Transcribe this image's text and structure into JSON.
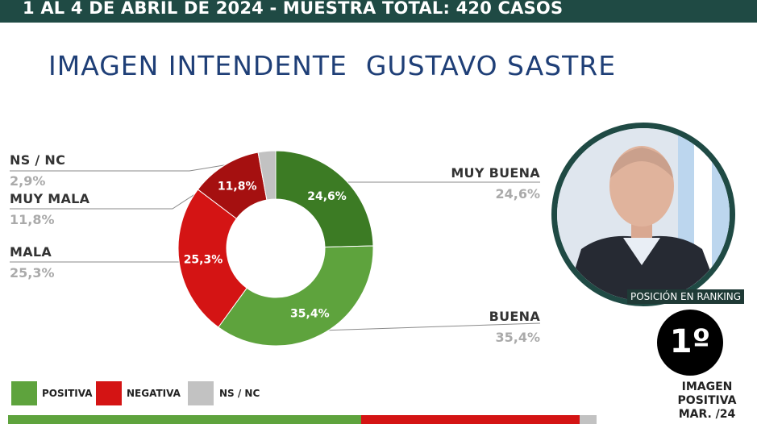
{
  "header": {
    "text": "1 AL 4 DE ABRIL DE 2024 - MUESTRA TOTAL: 420 CASOS"
  },
  "title": "IMAGEN INTENDENTE  GUSTAVO SASTRE",
  "chart_data": {
    "type": "pie",
    "donut": true,
    "slices": [
      {
        "label": "MUY BUENA",
        "value": 24.6,
        "display": "24,6%",
        "value_text": "24,6%",
        "color": "#3c7b24"
      },
      {
        "label": "BUENA",
        "value": 35.4,
        "display": "35,4%",
        "value_text": "35,4%",
        "color": "#5ea33d"
      },
      {
        "label": "MALA",
        "value": 25.3,
        "display": "25,3%",
        "value_text": "25,3%",
        "color": "#d41414"
      },
      {
        "label": "MUY MALA",
        "value": 11.8,
        "display": "11,8%",
        "value_text": "11,8%",
        "color": "#a51010"
      },
      {
        "label": "NS / NC",
        "value": 2.9,
        "display": "",
        "value_text": "2,9%",
        "color": "#c2c2c2"
      }
    ],
    "legend": [
      {
        "label": "POSITIVA",
        "color": "#5ea33d"
      },
      {
        "label": "NEGATIVA",
        "color": "#d41414"
      },
      {
        "label": "NS / NC",
        "color": "#c2c2c2"
      }
    ],
    "summary_bar": [
      {
        "name": "POSITIVA",
        "value": 60.0,
        "color": "#5ea33d"
      },
      {
        "name": "NEGATIVA",
        "value": 37.1,
        "color": "#d41414"
      },
      {
        "name": "NS / NC",
        "value": 2.9,
        "color": "#c2c2c2"
      }
    ]
  },
  "ranking": {
    "label": "POSICIÓN EN RANKING",
    "position": "1º",
    "caption_lines": [
      "IMAGEN",
      "POSITIVA",
      "MAR. /24"
    ]
  }
}
